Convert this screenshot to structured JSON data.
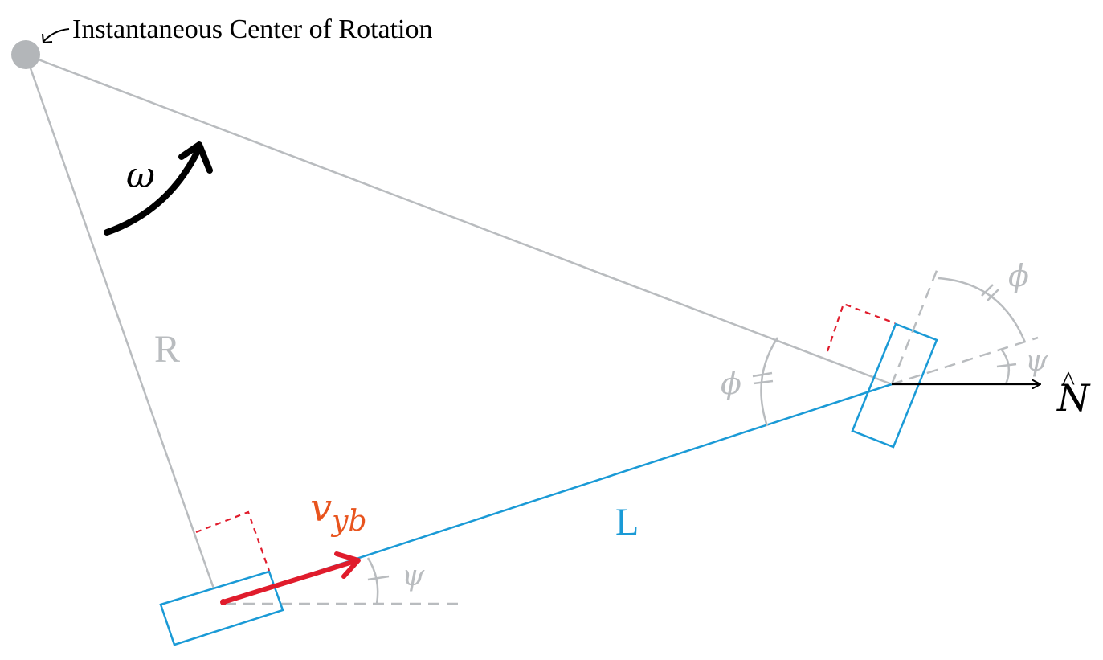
{
  "labels": {
    "icr": "Instantaneous Center of Rotation",
    "omega": "ω",
    "R": "R",
    "L": "L",
    "velocity": "v",
    "velocity_subscript": "yb",
    "psi": "ψ",
    "phi": "ϕ",
    "normal": "N",
    "normal_hat": "^"
  },
  "colors": {
    "gray": "#b9bcbf",
    "blue": "#1a9ad6",
    "red": "#e01c2c",
    "orange": "#e8541e",
    "black": "#000000",
    "pivot": "#b3b6b9"
  }
}
